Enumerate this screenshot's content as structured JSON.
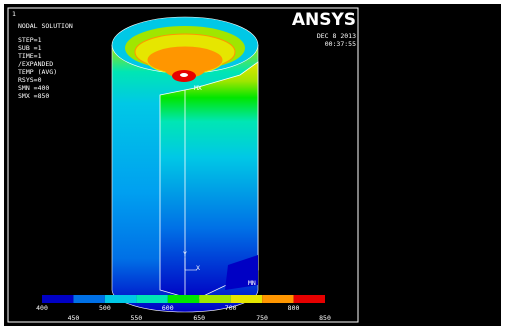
{
  "window_number": "1",
  "info": [
    "NODAL SOLUTION",
    "STEP=1",
    "SUB =1",
    "TIME=1",
    "/EXPANDED",
    "TEMP     (AVG)",
    "RSYS=0",
    "SMN =400",
    "SMX =850"
  ],
  "logo": "ANSYS",
  "date": "DEC  8 2013",
  "time": "00:37:55",
  "markers": {
    "max": "MX",
    "min": "MN",
    "axis_y": "Y",
    "axis_x": "X"
  },
  "legend": {
    "colors": [
      "#0000c4",
      "#0070e6",
      "#00c8e6",
      "#00e6b4",
      "#00e600",
      "#a0e600",
      "#e6e600",
      "#ff9600",
      "#e60000"
    ],
    "ticks": [
      400,
      450,
      500,
      550,
      600,
      650,
      700,
      750,
      800,
      850
    ]
  }
}
